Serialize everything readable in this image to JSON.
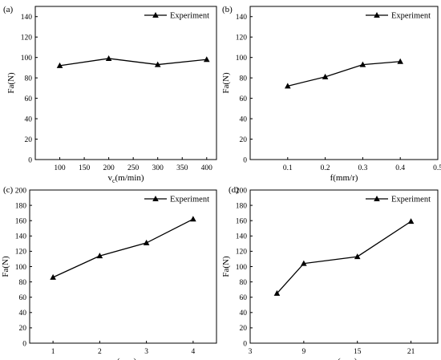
{
  "chart_data": [
    {
      "panel": "(a)",
      "type": "line",
      "xlabel_base": "v",
      "xlabel_sub": "c",
      "xlabel_rest": "(m/min)",
      "ylabel": "Fa(N)",
      "xlim": [
        50,
        420
      ],
      "ylim": [
        0,
        150
      ],
      "xticks": [
        100,
        150,
        200,
        250,
        300,
        350,
        400
      ],
      "yticks": [
        0,
        20,
        40,
        60,
        80,
        100,
        120,
        140
      ],
      "series": [
        {
          "name": "Experiment",
          "x": [
            100,
            200,
            300,
            400
          ],
          "y": [
            92,
            99,
            93,
            98
          ]
        }
      ],
      "legend": "top-right"
    },
    {
      "panel": "(b)",
      "type": "line",
      "xlabel_base": "f(mm/r)",
      "xlabel_sub": "",
      "xlabel_rest": "",
      "ylabel": "Fa(N)",
      "xlim": [
        0,
        0.5
      ],
      "ylim": [
        0,
        150
      ],
      "xticks": [
        0.1,
        0.2,
        0.3,
        0.4,
        0.5
      ],
      "yticks": [
        0,
        20,
        40,
        60,
        80,
        100,
        120,
        140
      ],
      "series": [
        {
          "name": "Experiment",
          "x": [
            0.1,
            0.2,
            0.3,
            0.4
          ],
          "y": [
            72,
            81,
            93,
            96
          ]
        }
      ],
      "legend": "top-right"
    },
    {
      "panel": "(c)",
      "type": "line",
      "xlabel_base": "a",
      "xlabel_sub": "p",
      "xlabel_rest": "(mm)",
      "ylabel": "Fa(N)",
      "xlim": [
        0.5,
        4.5
      ],
      "ylim": [
        0,
        200
      ],
      "xticks": [
        1,
        2,
        3,
        4
      ],
      "yticks": [
        0,
        20,
        40,
        60,
        80,
        100,
        120,
        140,
        160,
        180,
        200
      ],
      "series": [
        {
          "name": "Experiment",
          "x": [
            1,
            2,
            3,
            4
          ],
          "y": [
            86,
            114,
            131,
            162
          ]
        }
      ],
      "legend": "top-right"
    },
    {
      "panel": "(d)",
      "type": "line",
      "xlabel_base": "a",
      "xlabel_sub": "e",
      "xlabel_rest": "(mm)",
      "ylabel": "Fa(N)",
      "xlim": [
        3,
        24
      ],
      "ylim": [
        0,
        200
      ],
      "xticks": [
        3,
        9,
        15,
        21
      ],
      "yticks": [
        0,
        20,
        40,
        60,
        80,
        100,
        120,
        140,
        160,
        180,
        200
      ],
      "series": [
        {
          "name": "Experiment",
          "x": [
            6,
            9,
            15,
            21
          ],
          "y": [
            65,
            104,
            113,
            159
          ]
        }
      ],
      "legend": "top-right"
    }
  ]
}
